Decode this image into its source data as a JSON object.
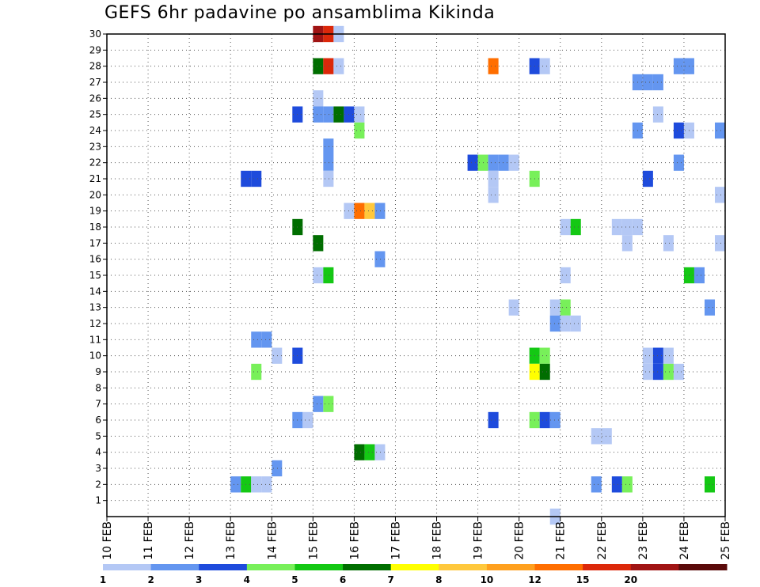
{
  "chart_data": {
    "type": "heatmap",
    "title": "GEFS 6hr padavine po ansamblima Kikinda",
    "xlabel": "",
    "ylabel": "",
    "x_ticks": [
      "10 FEB",
      "11 FEB",
      "12 FEB",
      "13 FEB",
      "14 FEB",
      "15 FEB",
      "16 FEB",
      "17 FEB",
      "18 FEB",
      "19 FEB",
      "20 FEB",
      "21 FEB",
      "22 FEB",
      "23 FEB",
      "24 FEB",
      "25 FEB"
    ],
    "y_ticks": [
      1,
      2,
      3,
      4,
      5,
      6,
      7,
      8,
      9,
      10,
      11,
      12,
      13,
      14,
      15,
      16,
      17,
      18,
      19,
      20,
      21,
      22,
      23,
      24,
      25,
      26,
      27,
      28,
      29,
      30
    ],
    "x_range_days": [
      0,
      15
    ],
    "y_range": [
      0,
      30
    ],
    "grid": "dotted",
    "legend": {
      "placement": "bottom",
      "levels": [
        "1",
        "2",
        "3",
        "4",
        "5",
        "6",
        "7",
        "8",
        "10",
        "12",
        "15",
        "20"
      ],
      "colors": [
        "#b4c8f5",
        "#6496f0",
        "#1e4bdc",
        "#78f05a",
        "#14c814",
        "#006e00",
        "#ffff00",
        "#ffc83c",
        "#ffa01e",
        "#ff6e00",
        "#dc280a",
        "#a01414",
        "#5a0a0a"
      ]
    },
    "cells_note": "each cell: [member, day offset from 10 FEB 00Z, colour bin index into legend.colors]",
    "cells": [
      [
        30,
        5.0,
        11
      ],
      [
        30,
        5.25,
        10
      ],
      [
        30,
        5.5,
        0
      ],
      [
        28,
        5.0,
        5
      ],
      [
        28,
        5.25,
        10
      ],
      [
        28,
        5.5,
        0
      ],
      [
        28,
        9.25,
        9
      ],
      [
        28,
        10.25,
        2
      ],
      [
        28,
        10.5,
        0
      ],
      [
        28,
        13.75,
        1
      ],
      [
        28,
        14.0,
        1
      ],
      [
        27,
        12.75,
        1
      ],
      [
        27,
        13.0,
        1
      ],
      [
        27,
        13.25,
        1
      ],
      [
        26,
        5.0,
        0
      ],
      [
        25,
        4.5,
        2
      ],
      [
        25,
        5.0,
        1
      ],
      [
        25,
        5.25,
        1
      ],
      [
        25,
        5.5,
        5
      ],
      [
        25,
        5.75,
        2
      ],
      [
        25,
        6.0,
        0
      ],
      [
        25,
        13.25,
        0
      ],
      [
        24,
        6.0,
        3
      ],
      [
        24,
        12.75,
        1
      ],
      [
        24,
        13.75,
        2
      ],
      [
        24,
        14.0,
        0
      ],
      [
        24,
        14.75,
        1
      ],
      [
        23,
        5.25,
        1
      ],
      [
        22,
        5.25,
        1
      ],
      [
        22,
        8.75,
        2
      ],
      [
        22,
        9.0,
        3
      ],
      [
        22,
        9.25,
        1
      ],
      [
        22,
        9.5,
        1
      ],
      [
        22,
        9.75,
        0
      ],
      [
        22,
        13.75,
        1
      ],
      [
        21,
        5.25,
        0
      ],
      [
        21,
        3.25,
        2
      ],
      [
        21,
        3.5,
        2
      ],
      [
        21,
        9.25,
        0
      ],
      [
        21,
        10.25,
        3
      ],
      [
        21,
        13.0,
        2
      ],
      [
        20,
        9.25,
        0
      ],
      [
        20,
        14.75,
        0
      ],
      [
        19,
        5.75,
        0
      ],
      [
        19,
        6.0,
        9
      ],
      [
        19,
        6.25,
        7
      ],
      [
        19,
        6.5,
        1
      ],
      [
        18,
        4.5,
        5
      ],
      [
        18,
        11.0,
        0
      ],
      [
        18,
        11.25,
        4
      ],
      [
        18,
        12.25,
        0
      ],
      [
        18,
        12.5,
        0
      ],
      [
        18,
        12.75,
        0
      ],
      [
        17,
        5.0,
        5
      ],
      [
        17,
        12.5,
        0
      ],
      [
        17,
        13.5,
        0
      ],
      [
        17,
        14.75,
        0
      ],
      [
        16,
        6.5,
        1
      ],
      [
        15,
        5.0,
        0
      ],
      [
        15,
        5.25,
        4
      ],
      [
        15,
        11.0,
        0
      ],
      [
        15,
        14.0,
        4
      ],
      [
        15,
        14.25,
        1
      ],
      [
        13,
        9.75,
        0
      ],
      [
        13,
        10.75,
        0
      ],
      [
        13,
        11.0,
        3
      ],
      [
        13,
        14.5,
        1
      ],
      [
        12,
        10.75,
        1
      ],
      [
        12,
        11.0,
        0
      ],
      [
        12,
        11.25,
        0
      ],
      [
        11,
        3.5,
        1
      ],
      [
        11,
        3.75,
        1
      ],
      [
        10,
        4.0,
        0
      ],
      [
        10,
        4.5,
        2
      ],
      [
        10,
        10.25,
        4
      ],
      [
        10,
        10.5,
        3
      ],
      [
        10,
        13.0,
        0
      ],
      [
        10,
        13.25,
        2
      ],
      [
        10,
        13.5,
        0
      ],
      [
        9,
        3.5,
        3
      ],
      [
        9,
        10.25,
        6
      ],
      [
        9,
        10.5,
        5
      ],
      [
        9,
        13.0,
        0
      ],
      [
        9,
        13.25,
        2
      ],
      [
        9,
        13.5,
        3
      ],
      [
        9,
        13.75,
        0
      ],
      [
        7,
        5.0,
        1
      ],
      [
        7,
        5.25,
        3
      ],
      [
        6,
        4.5,
        1
      ],
      [
        6,
        4.75,
        0
      ],
      [
        6,
        9.25,
        2
      ],
      [
        6,
        10.25,
        3
      ],
      [
        6,
        10.5,
        2
      ],
      [
        6,
        10.75,
        1
      ],
      [
        5,
        11.75,
        0
      ],
      [
        5,
        12.0,
        0
      ],
      [
        4,
        6.0,
        5
      ],
      [
        4,
        6.25,
        4
      ],
      [
        4,
        6.5,
        0
      ],
      [
        3,
        4.0,
        1
      ],
      [
        2,
        3.0,
        1
      ],
      [
        2,
        3.25,
        4
      ],
      [
        2,
        3.5,
        0
      ],
      [
        2,
        3.75,
        0
      ],
      [
        2,
        11.75,
        1
      ],
      [
        2,
        12.25,
        2
      ],
      [
        2,
        12.5,
        3
      ],
      [
        2,
        14.5,
        4
      ],
      [
        0,
        10.75,
        0
      ]
    ]
  }
}
